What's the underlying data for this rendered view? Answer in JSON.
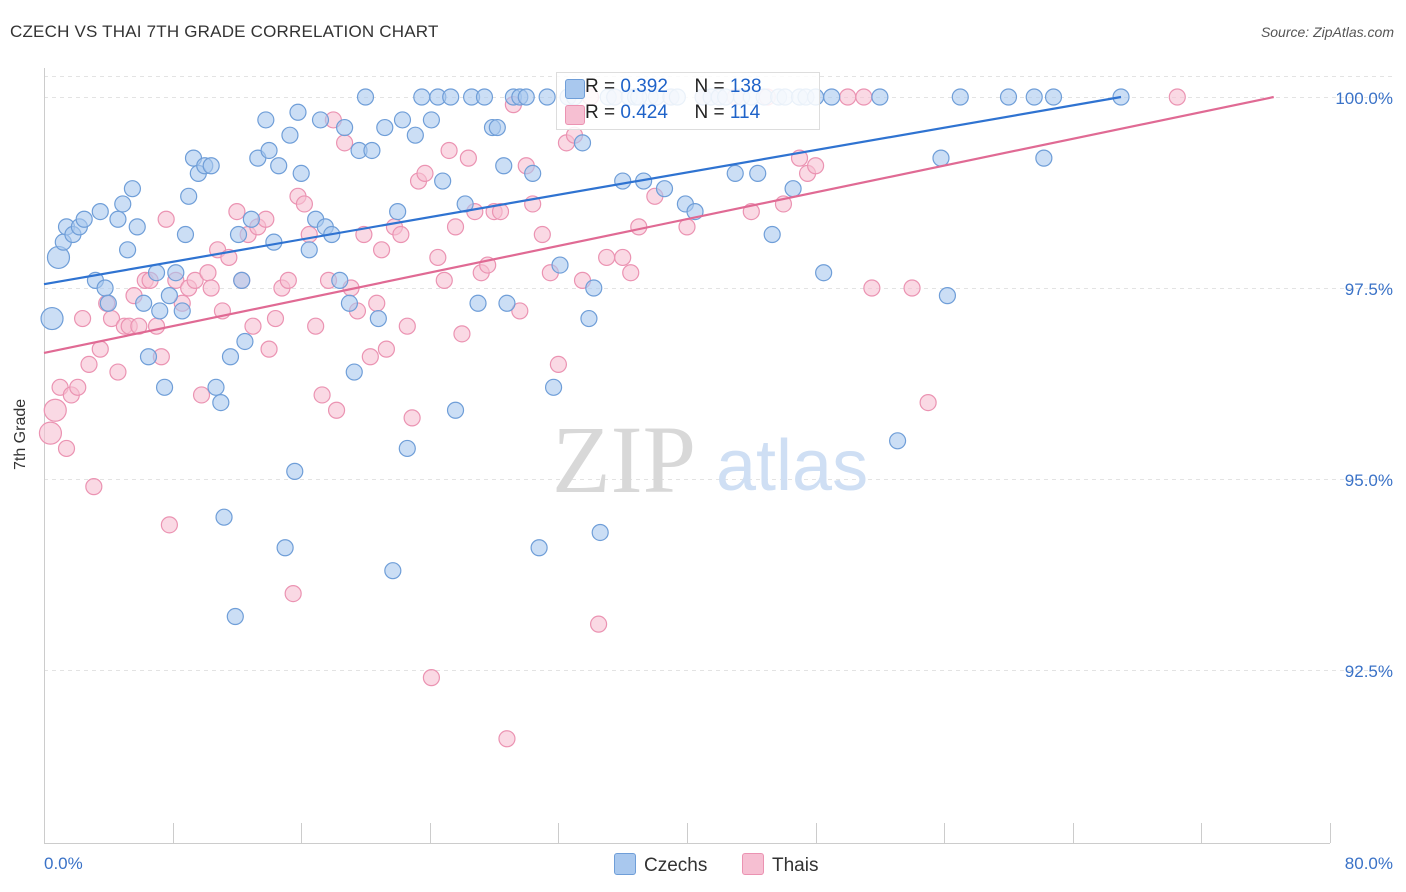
{
  "title": "CZECH VS THAI 7TH GRADE CORRELATION CHART",
  "source": "Source: ZipAtlas.com",
  "watermark": {
    "zip": "ZIP",
    "atlas": "atlas"
  },
  "colors": {
    "czech_fill": "#a9c8ee",
    "czech_stroke": "#6f9ed8",
    "czech_line": "#2f73d1",
    "thai_fill": "#f6bfd2",
    "thai_stroke": "#eb93b2",
    "thai_line": "#e06a94",
    "tick_label": "#3a72c7",
    "grid": "#e3e3e3"
  },
  "legend": {
    "czech": {
      "r_label": "R = ",
      "r_value": "0.392",
      "n_label": "N = ",
      "n_value": "138"
    },
    "thai": {
      "r_label": "R = ",
      "r_value": "0.424",
      "n_label": "N = ",
      "n_value": "114"
    }
  },
  "bottom_legend": {
    "czech": "Czechs",
    "thai": "Thais"
  },
  "chart_data": {
    "type": "scatter",
    "title": "CZECH VS THAI 7TH GRADE CORRELATION CHART",
    "xlabel": "",
    "ylabel": "7th Grade",
    "xlim": [
      0,
      80
    ],
    "ylim": [
      90.2,
      100.5
    ],
    "x_tick_labels": [
      "0.0%",
      "80.0%"
    ],
    "y_ticks": [
      92.5,
      95.0,
      97.5,
      100.0
    ],
    "y_tick_labels": [
      "92.5%",
      "95.0%",
      "97.5%",
      "100.0%"
    ],
    "grid": true,
    "legend_position": "top-center",
    "series": [
      {
        "name": "Czechs",
        "trend": {
          "x": [
            0,
            67
          ],
          "y": [
            97.55,
            100.0
          ]
        },
        "points": [
          [
            0.5,
            97.1
          ],
          [
            0.9,
            97.9
          ],
          [
            1.2,
            98.1
          ],
          [
            1.4,
            98.3
          ],
          [
            1.8,
            98.2
          ],
          [
            2.2,
            98.3
          ],
          [
            2.5,
            98.4
          ],
          [
            3.2,
            97.6
          ],
          [
            3.5,
            98.5
          ],
          [
            3.8,
            97.5
          ],
          [
            4.0,
            97.3
          ],
          [
            4.6,
            98.4
          ],
          [
            4.9,
            98.6
          ],
          [
            5.2,
            98.0
          ],
          [
            5.5,
            98.8
          ],
          [
            5.8,
            98.3
          ],
          [
            6.2,
            97.3
          ],
          [
            6.5,
            96.6
          ],
          [
            7.0,
            97.7
          ],
          [
            7.2,
            97.2
          ],
          [
            7.5,
            96.2
          ],
          [
            7.8,
            97.4
          ],
          [
            8.2,
            97.7
          ],
          [
            8.6,
            97.2
          ],
          [
            8.8,
            98.2
          ],
          [
            9.0,
            98.7
          ],
          [
            9.3,
            99.2
          ],
          [
            9.6,
            99.0
          ],
          [
            10.0,
            99.1
          ],
          [
            10.4,
            99.1
          ],
          [
            10.7,
            96.2
          ],
          [
            11.0,
            96.0
          ],
          [
            11.2,
            94.5
          ],
          [
            11.6,
            96.6
          ],
          [
            11.9,
            93.2
          ],
          [
            12.1,
            98.2
          ],
          [
            12.3,
            97.6
          ],
          [
            12.5,
            96.8
          ],
          [
            12.9,
            98.4
          ],
          [
            13.3,
            99.2
          ],
          [
            13.8,
            99.7
          ],
          [
            14.0,
            99.3
          ],
          [
            14.3,
            98.1
          ],
          [
            14.6,
            99.1
          ],
          [
            15.0,
            94.1
          ],
          [
            15.3,
            99.5
          ],
          [
            15.6,
            95.1
          ],
          [
            15.8,
            99.8
          ],
          [
            16.0,
            99.0
          ],
          [
            16.5,
            98.0
          ],
          [
            16.9,
            98.4
          ],
          [
            17.2,
            99.7
          ],
          [
            17.5,
            98.3
          ],
          [
            17.9,
            98.2
          ],
          [
            18.4,
            97.6
          ],
          [
            18.7,
            99.6
          ],
          [
            19.0,
            97.3
          ],
          [
            19.3,
            96.4
          ],
          [
            19.6,
            99.3
          ],
          [
            20.0,
            100.0
          ],
          [
            20.4,
            99.3
          ],
          [
            20.8,
            97.1
          ],
          [
            21.2,
            99.6
          ],
          [
            21.7,
            93.8
          ],
          [
            22.0,
            98.5
          ],
          [
            22.3,
            99.7
          ],
          [
            22.6,
            95.4
          ],
          [
            23.1,
            99.5
          ],
          [
            23.5,
            100.0
          ],
          [
            24.1,
            99.7
          ],
          [
            24.5,
            100.0
          ],
          [
            24.8,
            98.9
          ],
          [
            25.3,
            100.0
          ],
          [
            25.6,
            95.9
          ],
          [
            26.2,
            98.6
          ],
          [
            26.6,
            100.0
          ],
          [
            27.0,
            97.3
          ],
          [
            27.4,
            100.0
          ],
          [
            27.9,
            99.6
          ],
          [
            28.2,
            99.6
          ],
          [
            28.6,
            99.1
          ],
          [
            28.8,
            97.3
          ],
          [
            29.2,
            100.0
          ],
          [
            29.6,
            100.0
          ],
          [
            30.0,
            100.0
          ],
          [
            30.4,
            99.0
          ],
          [
            30.8,
            94.1
          ],
          [
            31.3,
            100.0
          ],
          [
            31.7,
            96.2
          ],
          [
            32.1,
            97.8
          ],
          [
            32.6,
            100.0
          ],
          [
            33.0,
            100.0
          ],
          [
            33.5,
            99.4
          ],
          [
            33.9,
            97.1
          ],
          [
            34.2,
            97.5
          ],
          [
            34.6,
            94.3
          ],
          [
            35.1,
            100.0
          ],
          [
            35.5,
            100.0
          ],
          [
            36.0,
            98.9
          ],
          [
            36.4,
            100.0
          ],
          [
            36.8,
            100.0
          ],
          [
            37.3,
            98.9
          ],
          [
            37.7,
            100.0
          ],
          [
            38.1,
            100.0
          ],
          [
            38.6,
            98.8
          ],
          [
            39.0,
            100.0
          ],
          [
            39.4,
            100.0
          ],
          [
            39.9,
            98.6
          ],
          [
            40.5,
            98.5
          ],
          [
            41.0,
            100.0
          ],
          [
            41.5,
            100.0
          ],
          [
            42.0,
            100.0
          ],
          [
            42.4,
            100.0
          ],
          [
            43.0,
            99.0
          ],
          [
            43.4,
            100.0
          ],
          [
            44.0,
            100.0
          ],
          [
            44.4,
            99.0
          ],
          [
            44.8,
            100.0
          ],
          [
            45.3,
            98.2
          ],
          [
            45.7,
            100.0
          ],
          [
            46.1,
            100.0
          ],
          [
            46.6,
            98.8
          ],
          [
            47.0,
            100.0
          ],
          [
            47.4,
            100.0
          ],
          [
            48.0,
            100.0
          ],
          [
            48.5,
            97.7
          ],
          [
            49.0,
            100.0
          ],
          [
            52.0,
            100.0
          ],
          [
            53.1,
            95.5
          ],
          [
            55.8,
            99.2
          ],
          [
            56.2,
            97.4
          ],
          [
            57.0,
            100.0
          ],
          [
            60.0,
            100.0
          ],
          [
            61.6,
            100.0
          ],
          [
            62.2,
            99.2
          ],
          [
            62.8,
            100.0
          ],
          [
            67.0,
            100.0
          ],
          [
            37.0,
            100.0
          ]
        ]
      },
      {
        "name": "Thais",
        "trend": {
          "x": [
            0,
            76.5
          ],
          "y": [
            96.65,
            100.0
          ]
        },
        "points": [
          [
            0.4,
            95.6
          ],
          [
            0.7,
            95.9
          ],
          [
            1.0,
            96.2
          ],
          [
            1.4,
            95.4
          ],
          [
            1.7,
            96.1
          ],
          [
            2.1,
            96.2
          ],
          [
            2.4,
            97.1
          ],
          [
            2.8,
            96.5
          ],
          [
            3.1,
            94.9
          ],
          [
            3.5,
            96.7
          ],
          [
            3.9,
            97.3
          ],
          [
            4.2,
            97.1
          ],
          [
            4.6,
            96.4
          ],
          [
            5.0,
            97.0
          ],
          [
            5.3,
            97.0
          ],
          [
            5.6,
            97.4
          ],
          [
            5.9,
            97.0
          ],
          [
            6.3,
            97.6
          ],
          [
            6.6,
            97.6
          ],
          [
            7.0,
            97.0
          ],
          [
            7.3,
            96.6
          ],
          [
            7.6,
            98.4
          ],
          [
            7.8,
            94.4
          ],
          [
            8.2,
            97.6
          ],
          [
            8.6,
            97.3
          ],
          [
            9.0,
            97.5
          ],
          [
            9.4,
            97.6
          ],
          [
            9.8,
            96.1
          ],
          [
            10.2,
            97.7
          ],
          [
            10.4,
            97.5
          ],
          [
            10.8,
            98.0
          ],
          [
            11.1,
            97.2
          ],
          [
            11.5,
            97.9
          ],
          [
            12.0,
            98.5
          ],
          [
            12.3,
            97.6
          ],
          [
            12.7,
            98.2
          ],
          [
            13.0,
            97.0
          ],
          [
            13.3,
            98.3
          ],
          [
            13.8,
            98.4
          ],
          [
            14.0,
            96.7
          ],
          [
            14.4,
            97.1
          ],
          [
            14.8,
            97.5
          ],
          [
            15.2,
            97.6
          ],
          [
            15.5,
            93.5
          ],
          [
            15.8,
            98.7
          ],
          [
            16.2,
            98.6
          ],
          [
            16.5,
            98.2
          ],
          [
            16.9,
            97.0
          ],
          [
            17.3,
            96.1
          ],
          [
            17.7,
            97.6
          ],
          [
            18.0,
            99.7
          ],
          [
            18.2,
            95.9
          ],
          [
            18.7,
            99.4
          ],
          [
            19.1,
            97.5
          ],
          [
            19.5,
            97.2
          ],
          [
            19.9,
            98.2
          ],
          [
            20.3,
            96.6
          ],
          [
            20.7,
            97.3
          ],
          [
            21.0,
            98.0
          ],
          [
            21.3,
            96.7
          ],
          [
            21.8,
            98.3
          ],
          [
            22.2,
            98.2
          ],
          [
            22.6,
            97.0
          ],
          [
            22.9,
            95.8
          ],
          [
            23.3,
            98.9
          ],
          [
            23.7,
            99.0
          ],
          [
            24.1,
            92.4
          ],
          [
            24.5,
            97.9
          ],
          [
            24.9,
            97.6
          ],
          [
            25.2,
            99.3
          ],
          [
            25.6,
            98.3
          ],
          [
            26.0,
            96.9
          ],
          [
            26.4,
            99.2
          ],
          [
            26.8,
            98.5
          ],
          [
            27.2,
            97.7
          ],
          [
            27.6,
            97.8
          ],
          [
            28.0,
            98.5
          ],
          [
            28.4,
            98.5
          ],
          [
            28.8,
            91.6
          ],
          [
            29.2,
            99.9
          ],
          [
            29.6,
            97.2
          ],
          [
            30.0,
            99.1
          ],
          [
            30.4,
            98.6
          ],
          [
            31.0,
            98.2
          ],
          [
            31.5,
            97.7
          ],
          [
            32.0,
            96.5
          ],
          [
            32.5,
            99.4
          ],
          [
            33.0,
            99.5
          ],
          [
            33.5,
            97.6
          ],
          [
            34.0,
            100.0
          ],
          [
            34.5,
            93.1
          ],
          [
            35.0,
            97.9
          ],
          [
            35.5,
            100.0
          ],
          [
            36.0,
            97.9
          ],
          [
            36.5,
            97.7
          ],
          [
            37.0,
            98.3
          ],
          [
            38.0,
            98.7
          ],
          [
            39.0,
            100.0
          ],
          [
            40.0,
            98.3
          ],
          [
            41.0,
            100.0
          ],
          [
            42.0,
            100.0
          ],
          [
            43.0,
            100.0
          ],
          [
            44.0,
            98.5
          ],
          [
            45.0,
            100.0
          ],
          [
            46.0,
            98.6
          ],
          [
            47.0,
            99.2
          ],
          [
            47.5,
            99.0
          ],
          [
            48.0,
            99.1
          ],
          [
            50.0,
            100.0
          ],
          [
            51.5,
            97.5
          ],
          [
            54.0,
            97.5
          ],
          [
            55.0,
            96.0
          ],
          [
            70.5,
            100.0
          ],
          [
            51.0,
            100.0
          ]
        ]
      }
    ]
  }
}
